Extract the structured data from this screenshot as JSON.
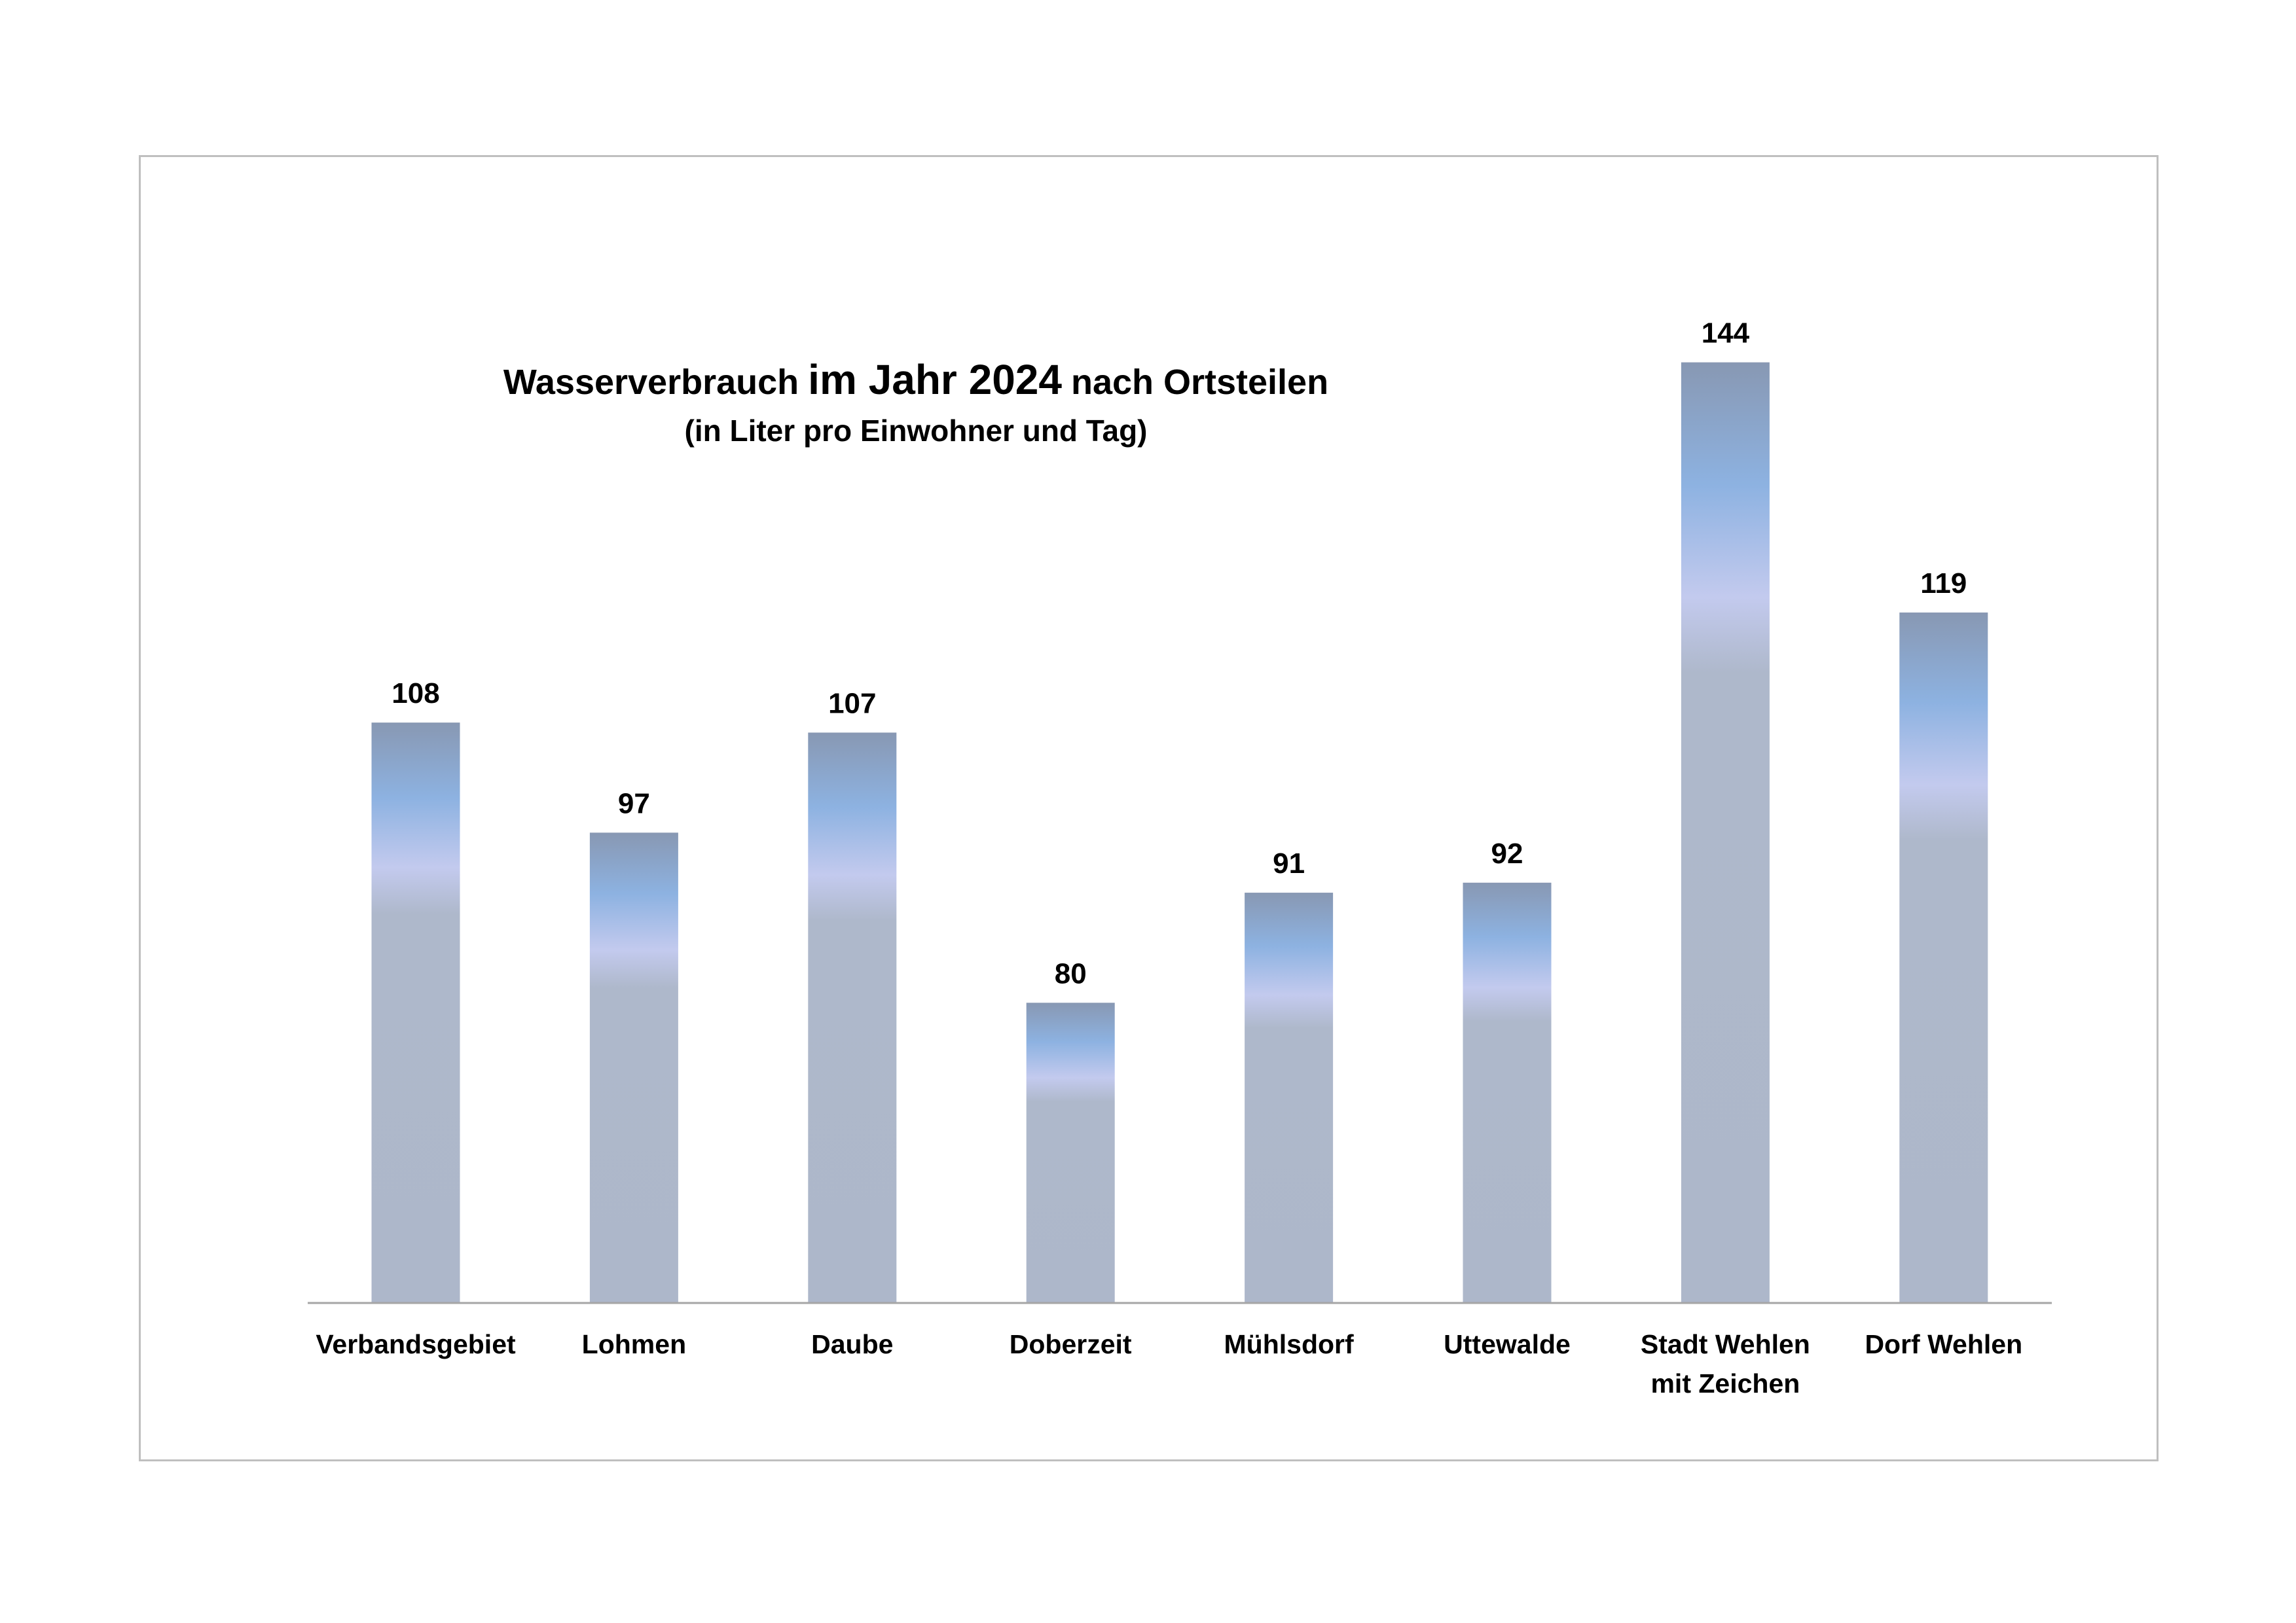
{
  "chart_data": {
    "type": "bar",
    "title": {
      "prefix": "Wasserverbrauch",
      "emphasis": "im Jahr 2024",
      "suffix": "nach Ortsteilen"
    },
    "subtitle": "(in Liter pro Einwohner und Tag)",
    "categories": [
      "Verbandsgebiet",
      "Lohmen",
      "Daube",
      "Doberzeit",
      "Mühlsdorf",
      "Uttewalde",
      "Stadt Wehlen\nmit Zeichen",
      "Dorf Wehlen"
    ],
    "values": [
      108,
      97,
      107,
      80,
      91,
      92,
      144,
      119
    ],
    "ylim": [
      50,
      160
    ],
    "grid": false,
    "legend": "none",
    "data_labels": true,
    "colors": {
      "bar_gradient": [
        "#8898b3",
        "#8db2e1",
        "#c3caee",
        "#aeb8cb",
        "#adb7ca"
      ],
      "axis": "#a6a6a6",
      "frame": "#bfbfbf",
      "text": "#000000"
    }
  }
}
